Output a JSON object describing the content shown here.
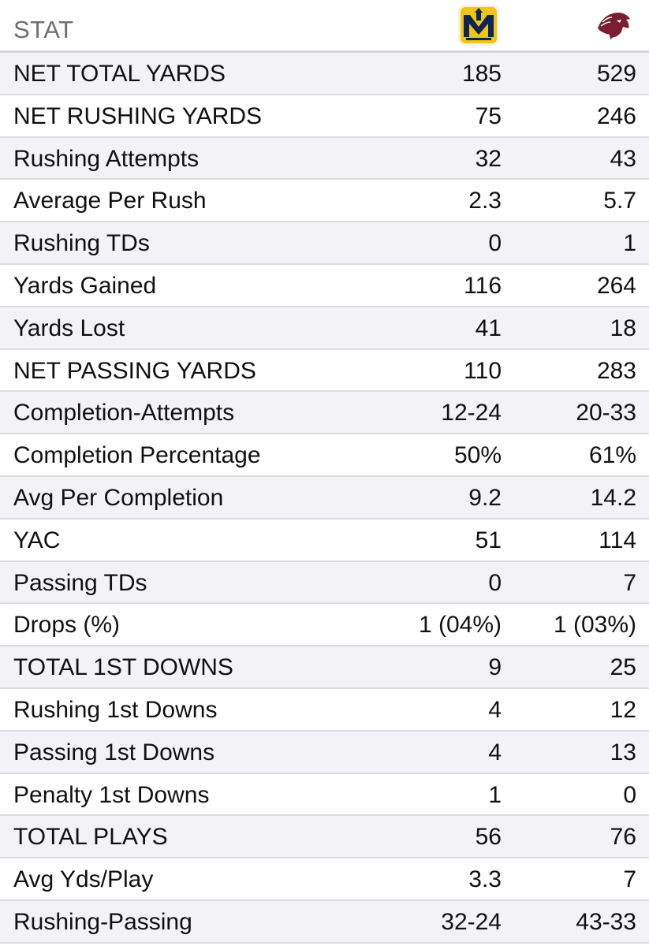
{
  "header": {
    "label": "STAT",
    "home_logo_icon": "murray-state-racers-logo-icon",
    "away_logo_icon": "southern-illinois-salukis-logo-icon"
  },
  "colors": {
    "row_alt": "#f2f2f7",
    "divider": "#dcdce0",
    "header_text": "#6e6e73",
    "home_gold": "#f0c419",
    "home_navy": "#0b2652",
    "away_maroon": "#7a1e32"
  },
  "rows": [
    {
      "label": "NET TOTAL YARDS",
      "home": "185",
      "away": "529"
    },
    {
      "label": "NET RUSHING YARDS",
      "home": "75",
      "away": "246"
    },
    {
      "label": "Rushing Attempts",
      "home": "32",
      "away": "43"
    },
    {
      "label": "Average Per Rush",
      "home": "2.3",
      "away": "5.7"
    },
    {
      "label": "Rushing TDs",
      "home": "0",
      "away": "1"
    },
    {
      "label": "Yards Gained",
      "home": "116",
      "away": "264"
    },
    {
      "label": "Yards Lost",
      "home": "41",
      "away": "18"
    },
    {
      "label": "NET PASSING YARDS",
      "home": "110",
      "away": "283"
    },
    {
      "label": "Completion-Attempts",
      "home": "12-24",
      "away": "20-33"
    },
    {
      "label": "Completion Percentage",
      "home": "50%",
      "away": "61%"
    },
    {
      "label": "Avg Per Completion",
      "home": "9.2",
      "away": "14.2"
    },
    {
      "label": "YAC",
      "home": "51",
      "away": "114"
    },
    {
      "label": "Passing TDs",
      "home": "0",
      "away": "7"
    },
    {
      "label": "Drops (%)",
      "home": "1 (04%)",
      "away": "1 (03%)"
    },
    {
      "label": "TOTAL 1ST DOWNS",
      "home": "9",
      "away": "25"
    },
    {
      "label": "Rushing 1st Downs",
      "home": "4",
      "away": "12"
    },
    {
      "label": "Passing 1st Downs",
      "home": "4",
      "away": "13"
    },
    {
      "label": "Penalty 1st Downs",
      "home": "1",
      "away": "0"
    },
    {
      "label": "TOTAL PLAYS",
      "home": "56",
      "away": "76"
    },
    {
      "label": "Avg Yds/Play",
      "home": "3.3",
      "away": "7"
    },
    {
      "label": "Rushing-Passing",
      "home": "32-24",
      "away": "43-33"
    }
  ]
}
